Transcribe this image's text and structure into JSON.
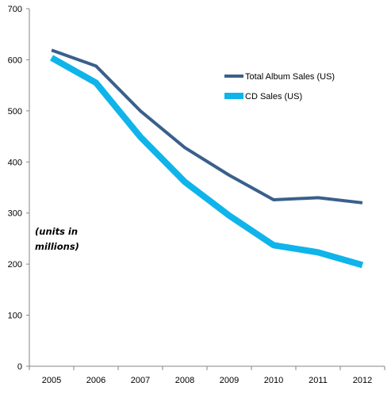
{
  "chart_data": {
    "type": "line",
    "title": "",
    "xlabel": "",
    "ylabel": "",
    "categories": [
      "2005",
      "2006",
      "2007",
      "2008",
      "2009",
      "2010",
      "2011",
      "2012"
    ],
    "ylim": [
      0,
      700
    ],
    "yticks": [
      0,
      100,
      200,
      300,
      400,
      500,
      600,
      700
    ],
    "grid": false,
    "legend_position": "top-right",
    "annotation_lines": [
      "(units in",
      "millions)"
    ],
    "series": [
      {
        "name": "Total Album Sales (US)",
        "color": "#3a5f8c",
        "values": [
          619,
          588,
          500,
          428,
          374,
          326,
          330,
          320
        ]
      },
      {
        "name": "CD Sales (US)",
        "color": "#0fb4ea",
        "values": [
          604,
          555,
          449,
          361,
          295,
          237,
          223,
          198
        ]
      }
    ]
  }
}
